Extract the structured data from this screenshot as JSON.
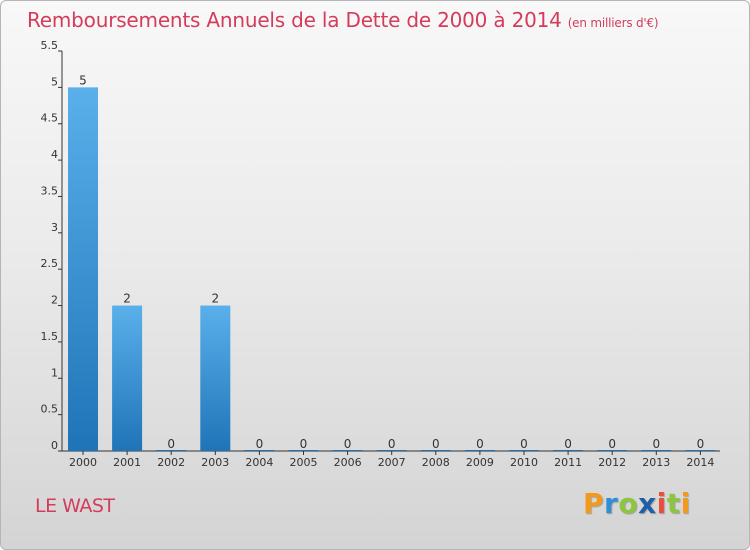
{
  "chart_data": {
    "type": "bar",
    "title": "Remboursements Annuels de la Dette de 2000 à 2014",
    "subtitle": "(en milliers d'€)",
    "categories": [
      "2000",
      "2001",
      "2002",
      "2003",
      "2004",
      "2005",
      "2006",
      "2007",
      "2008",
      "2009",
      "2010",
      "2011",
      "2012",
      "2013",
      "2014"
    ],
    "values": [
      5,
      2,
      0,
      2,
      0,
      0,
      0,
      0,
      0,
      0,
      0,
      0,
      0,
      0,
      0
    ],
    "data_labels": [
      "5",
      "2",
      "0",
      "2",
      "0",
      "0",
      "0",
      "0",
      "0",
      "0",
      "0",
      "0",
      "0",
      "0",
      "0"
    ],
    "ylim": [
      0,
      5.5
    ],
    "yticks": [
      0,
      0.5,
      1,
      1.5,
      2,
      2.5,
      3,
      3.5,
      4,
      4.5,
      5,
      5.5
    ],
    "ytick_labels": [
      "0",
      "0.5",
      "1",
      "1.5",
      "2",
      "2.5",
      "3",
      "3.5",
      "4",
      "4.5",
      "5",
      "5.5"
    ],
    "grid": false,
    "bar_color_top": "#5ab0ea",
    "bar_color_bottom": "#1f74b8"
  },
  "footer": {
    "commune": "LE WAST",
    "brand": {
      "letters": [
        "P",
        "r",
        "o",
        "x",
        "i",
        "t",
        "i"
      ],
      "colors": [
        "#f29a1c",
        "#2f8fd6",
        "#8cc63f",
        "#1f5fa8",
        "#e94e3d",
        "#8cc63f",
        "#f29a1c"
      ]
    }
  },
  "colors": {
    "title": "#d43c5c",
    "axis": "#333333"
  }
}
